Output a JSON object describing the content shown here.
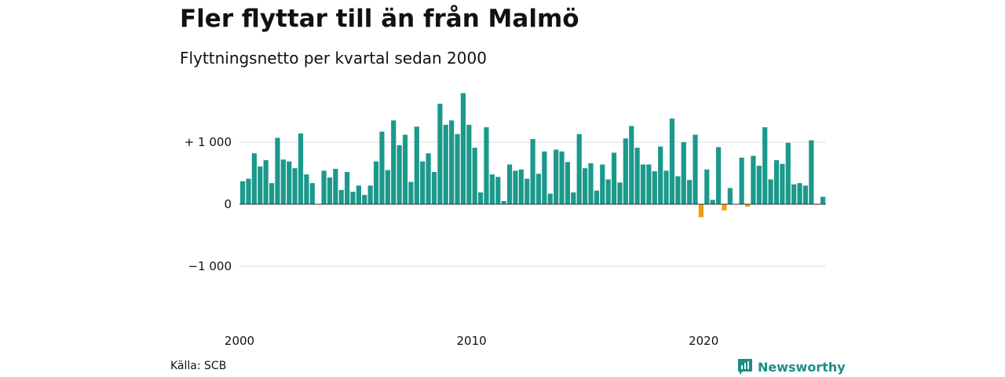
{
  "header": {
    "title": "Fler flyttar till än från Malmö",
    "subtitle": "Flyttningsnetto per kvartal sedan 2000"
  },
  "footer": {
    "source": "Källa: SCB",
    "brand": "Newsworthy",
    "brand_icon": "newsworthy-logo-icon"
  },
  "colors": {
    "positive": "#1b998b",
    "negative": "#f29e0c",
    "grid": "#dddddd",
    "brand": "#1b8f86"
  },
  "chart_data": {
    "type": "bar",
    "title": "Fler flyttar till än från Malmö",
    "subtitle": "Flyttningsnetto per kvartal sedan 2000",
    "x_start": 2000,
    "period": "quarter",
    "x_ticks": [
      {
        "label": "2000",
        "year": 2000
      },
      {
        "label": "2010",
        "year": 2010
      },
      {
        "label": "2020",
        "year": 2020
      }
    ],
    "y_ticks": [
      {
        "label": "+ 1 000",
        "value": 1000
      },
      {
        "label": "0",
        "value": 0
      },
      {
        "label": "−1 000",
        "value": -1000
      }
    ],
    "ylim": [
      -1400,
      1900
    ],
    "grid": true,
    "values": [
      370,
      410,
      820,
      610,
      710,
      340,
      1070,
      720,
      690,
      580,
      1140,
      480,
      340,
      0,
      540,
      430,
      570,
      230,
      520,
      200,
      300,
      150,
      300,
      690,
      1170,
      550,
      1350,
      950,
      1120,
      360,
      1250,
      690,
      820,
      520,
      1620,
      1280,
      1350,
      1130,
      1790,
      1280,
      910,
      190,
      1240,
      480,
      440,
      50,
      640,
      540,
      560,
      410,
      1050,
      490,
      850,
      170,
      880,
      850,
      680,
      190,
      1130,
      580,
      660,
      220,
      640,
      400,
      830,
      350,
      1060,
      1260,
      910,
      640,
      640,
      530,
      930,
      540,
      1380,
      450,
      1000,
      390,
      1120,
      -210,
      560,
      70,
      920,
      -100,
      260,
      0,
      750,
      -40,
      780,
      620,
      1240,
      400,
      710,
      650,
      990,
      320,
      340,
      300,
      1030,
      -10,
      120
    ]
  }
}
